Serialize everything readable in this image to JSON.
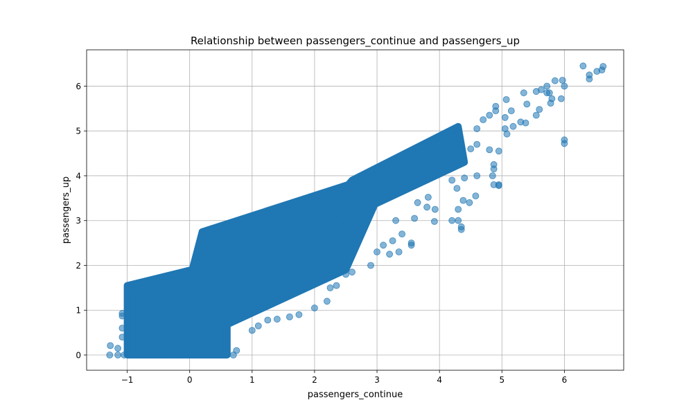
{
  "chart_data": {
    "type": "scatter",
    "title": "Relationship between passengers_continue and passengers_up",
    "xlabel": "passengers_continue",
    "ylabel": "passengers_up",
    "xlim": [
      -1.65,
      6.95
    ],
    "ylim": [
      -0.34,
      6.81
    ],
    "xticks": [
      -1,
      0,
      1,
      2,
      3,
      4,
      5,
      6
    ],
    "xtick_labels": [
      "−1",
      "0",
      "1",
      "2",
      "3",
      "4",
      "5",
      "6"
    ],
    "yticks": [
      0,
      1,
      2,
      3,
      4,
      5,
      6
    ],
    "ytick_labels": [
      "0",
      "1",
      "2",
      "3",
      "4",
      "5",
      "6"
    ],
    "grid": true,
    "marker_color": "#1f77b4",
    "marker_alpha": 0.55,
    "dense_regions": [
      {
        "x": [
          -1.0,
          0.6,
          0.6,
          -1.0
        ],
        "y": [
          0.0,
          0.0,
          2.1,
          1.55
        ]
      },
      {
        "x": [
          -0.3,
          2.5,
          3.2,
          0.2
        ],
        "y": [
          0.1,
          1.9,
          4.1,
          2.75
        ]
      },
      {
        "x": [
          1.8,
          4.4,
          4.3,
          2.6
        ],
        "y": [
          2.6,
          4.3,
          5.1,
          3.9
        ]
      }
    ],
    "outliers": [
      {
        "x": -1.28,
        "y": 0.0
      },
      {
        "x": -1.27,
        "y": 0.21
      },
      {
        "x": -1.15,
        "y": 0.15
      },
      {
        "x": -1.15,
        "y": 0.0
      },
      {
        "x": -1.08,
        "y": 0.4
      },
      {
        "x": -1.08,
        "y": 0.6
      },
      {
        "x": -1.08,
        "y": 0.87
      },
      {
        "x": -1.08,
        "y": 0.93
      },
      {
        "x": -1.05,
        "y": 0.0
      },
      {
        "x": 0.7,
        "y": 0.0
      },
      {
        "x": 0.75,
        "y": 0.1
      },
      {
        "x": 1.0,
        "y": 0.55
      },
      {
        "x": 1.1,
        "y": 0.65
      },
      {
        "x": 1.25,
        "y": 0.78
      },
      {
        "x": 1.4,
        "y": 0.8
      },
      {
        "x": 1.6,
        "y": 0.85
      },
      {
        "x": 1.75,
        "y": 0.9
      },
      {
        "x": 2.0,
        "y": 1.05
      },
      {
        "x": 2.2,
        "y": 1.2
      },
      {
        "x": 2.25,
        "y": 1.5
      },
      {
        "x": 2.35,
        "y": 1.55
      },
      {
        "x": 2.5,
        "y": 1.8
      },
      {
        "x": 2.6,
        "y": 1.85
      },
      {
        "x": 2.9,
        "y": 2.0
      },
      {
        "x": 3.0,
        "y": 2.3
      },
      {
        "x": 3.2,
        "y": 2.25
      },
      {
        "x": 3.35,
        "y": 2.3
      },
      {
        "x": 3.25,
        "y": 2.55
      },
      {
        "x": 3.1,
        "y": 2.45
      },
      {
        "x": 3.55,
        "y": 2.5
      },
      {
        "x": 3.55,
        "y": 2.45
      },
      {
        "x": 3.4,
        "y": 2.7
      },
      {
        "x": 3.3,
        "y": 3.0
      },
      {
        "x": 3.6,
        "y": 3.05
      },
      {
        "x": 3.65,
        "y": 3.4
      },
      {
        "x": 3.8,
        "y": 3.3
      },
      {
        "x": 3.93,
        "y": 3.25
      },
      {
        "x": 3.92,
        "y": 2.98
      },
      {
        "x": 3.82,
        "y": 3.52
      },
      {
        "x": 4.2,
        "y": 3.0
      },
      {
        "x": 4.3,
        "y": 3.0
      },
      {
        "x": 4.35,
        "y": 2.8
      },
      {
        "x": 4.35,
        "y": 2.86
      },
      {
        "x": 4.3,
        "y": 3.25
      },
      {
        "x": 4.38,
        "y": 3.45
      },
      {
        "x": 4.48,
        "y": 3.4
      },
      {
        "x": 4.58,
        "y": 3.55
      },
      {
        "x": 4.28,
        "y": 3.72
      },
      {
        "x": 4.2,
        "y": 3.9
      },
      {
        "x": 4.4,
        "y": 3.95
      },
      {
        "x": 4.6,
        "y": 4.0
      },
      {
        "x": 4.85,
        "y": 4.0
      },
      {
        "x": 4.87,
        "y": 4.15
      },
      {
        "x": 4.87,
        "y": 4.25
      },
      {
        "x": 4.87,
        "y": 3.8
      },
      {
        "x": 4.95,
        "y": 3.78
      },
      {
        "x": 4.95,
        "y": 3.8
      },
      {
        "x": 4.5,
        "y": 4.6
      },
      {
        "x": 4.6,
        "y": 4.7
      },
      {
        "x": 4.8,
        "y": 4.58
      },
      {
        "x": 4.95,
        "y": 4.55
      },
      {
        "x": 4.6,
        "y": 5.05
      },
      {
        "x": 4.7,
        "y": 5.25
      },
      {
        "x": 4.8,
        "y": 5.35
      },
      {
        "x": 4.9,
        "y": 5.45
      },
      {
        "x": 4.9,
        "y": 5.55
      },
      {
        "x": 5.05,
        "y": 5.3
      },
      {
        "x": 5.07,
        "y": 5.7
      },
      {
        "x": 5.05,
        "y": 5.05
      },
      {
        "x": 5.08,
        "y": 4.93
      },
      {
        "x": 5.18,
        "y": 5.1
      },
      {
        "x": 5.15,
        "y": 5.45
      },
      {
        "x": 5.3,
        "y": 5.2
      },
      {
        "x": 5.38,
        "y": 5.18
      },
      {
        "x": 5.4,
        "y": 5.6
      },
      {
        "x": 5.35,
        "y": 5.85
      },
      {
        "x": 5.55,
        "y": 5.35
      },
      {
        "x": 5.55,
        "y": 5.88
      },
      {
        "x": 5.6,
        "y": 5.48
      },
      {
        "x": 5.63,
        "y": 5.92
      },
      {
        "x": 5.72,
        "y": 5.85
      },
      {
        "x": 5.72,
        "y": 6.0
      },
      {
        "x": 5.78,
        "y": 5.62
      },
      {
        "x": 5.8,
        "y": 5.72
      },
      {
        "x": 5.85,
        "y": 6.12
      },
      {
        "x": 5.95,
        "y": 5.72
      },
      {
        "x": 5.97,
        "y": 6.13
      },
      {
        "x": 6.0,
        "y": 6.0
      },
      {
        "x": 6.0,
        "y": 4.72
      },
      {
        "x": 6.0,
        "y": 4.8
      },
      {
        "x": 5.76,
        "y": 5.85
      },
      {
        "x": 6.3,
        "y": 6.45
      },
      {
        "x": 6.4,
        "y": 6.16
      },
      {
        "x": 6.4,
        "y": 6.25
      },
      {
        "x": 6.52,
        "y": 6.33
      },
      {
        "x": 6.6,
        "y": 6.36
      },
      {
        "x": 6.62,
        "y": 6.44
      }
    ]
  }
}
